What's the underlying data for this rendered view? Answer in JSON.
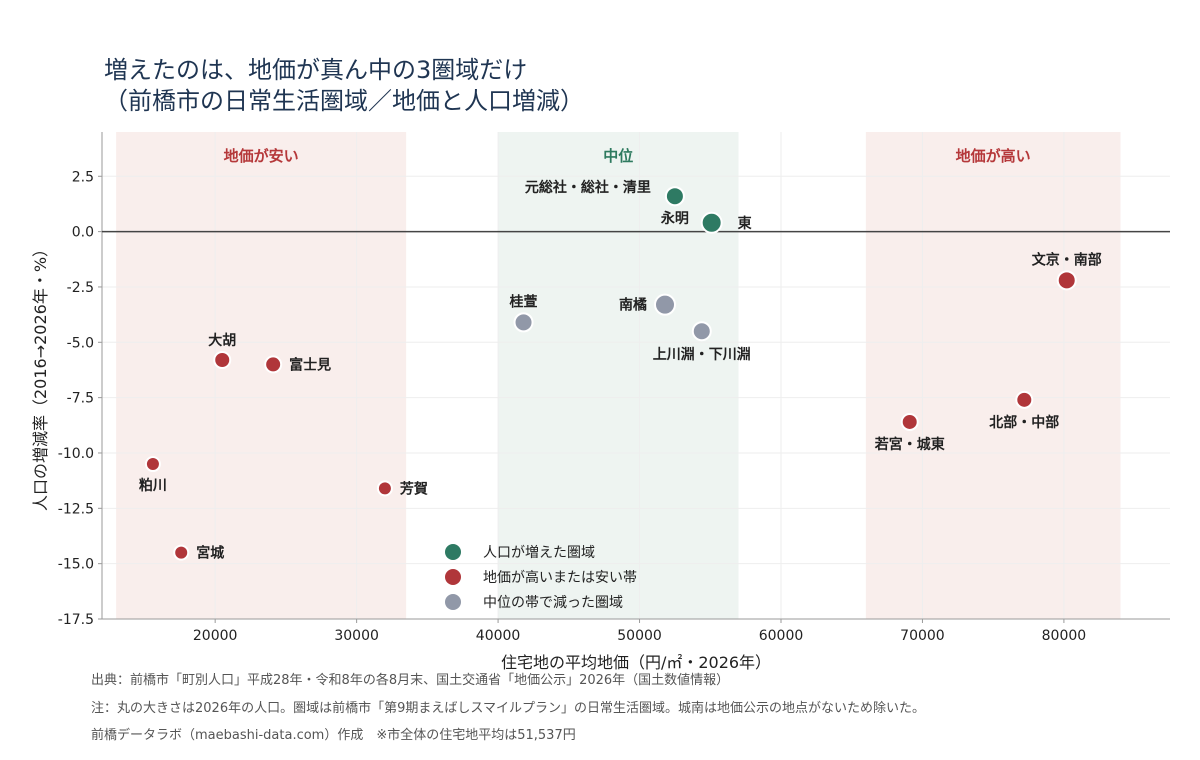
{
  "chart_data": {
    "type": "scatter",
    "title_lines": [
      "増えたのは、地価が真ん中の3圏域だけ",
      "（前橋市の日常生活圏域／地価と人口増減）"
    ],
    "xlabel": "住宅地の平均地価（円/㎡・2026年）",
    "ylabel": "人口の増減率（2016→2026年・%）",
    "xlim": [
      12000,
      87500
    ],
    "ylim": [
      -17.5,
      4.5
    ],
    "x_ticks": [
      20000,
      30000,
      40000,
      50000,
      60000,
      70000,
      80000
    ],
    "y_ticks": [
      2.5,
      0.0,
      -2.5,
      -5.0,
      -7.5,
      -10.0,
      -12.5,
      -15.0,
      -17.5
    ],
    "x_tick_labels": [
      "20000",
      "30000",
      "40000",
      "50000",
      "60000",
      "70000",
      "80000"
    ],
    "y_tick_labels": [
      "2.5",
      "0.0",
      "-2.5",
      "-5.0",
      "-7.5",
      "-10.0",
      "-12.5",
      "-15.0",
      "-17.5"
    ],
    "zero_line": 0,
    "bands": [
      {
        "label": "地価が安い",
        "x0": 13000,
        "x1": 33500,
        "fill": "#f9eeec",
        "text_color": "#b5383a"
      },
      {
        "label": "中位",
        "x0": 40000,
        "x1": 57000,
        "fill": "#eef4f1",
        "text_color": "#2e7a5f"
      },
      {
        "label": "地価が高い",
        "x0": 66000,
        "x1": 84000,
        "fill": "#f9eeec",
        "text_color": "#b5383a"
      }
    ],
    "categories": [
      {
        "key": "increase",
        "name": "人口が増えた圏域",
        "color": "#2e7a63"
      },
      {
        "key": "edge",
        "name": "地価が高いまたは安い帯",
        "color": "#b0363a"
      },
      {
        "key": "mid_decrease",
        "name": "中位の帯で減った圏域",
        "color": "#9198a8"
      }
    ],
    "points": [
      {
        "label": "元総社・総社・清里",
        "x": 52500,
        "y": 1.6,
        "category": "increase",
        "size": 9,
        "label_pos": "left"
      },
      {
        "label": "永明",
        "x": 52500,
        "y": 1.6,
        "category": "increase",
        "size": 9,
        "label_pos": "below-left"
      },
      {
        "label": "東",
        "x": 55100,
        "y": 0.4,
        "category": "increase",
        "size": 10,
        "label_pos": "right"
      },
      {
        "label": "文京・南部",
        "x": 80200,
        "y": -2.2,
        "category": "edge",
        "size": 9,
        "label_pos": "above"
      },
      {
        "label": "桂萱",
        "x": 41800,
        "y": -4.1,
        "category": "mid_decrease",
        "size": 9,
        "label_pos": "above"
      },
      {
        "label": "南橘",
        "x": 51800,
        "y": -3.3,
        "category": "mid_decrease",
        "size": 10,
        "label_pos": "left"
      },
      {
        "label": "上川淵・下川淵",
        "x": 54400,
        "y": -4.5,
        "category": "mid_decrease",
        "size": 9,
        "label_pos": "below"
      },
      {
        "label": "大胡",
        "x": 20500,
        "y": -5.8,
        "category": "edge",
        "size": 8,
        "label_pos": "above"
      },
      {
        "label": "富士見",
        "x": 24100,
        "y": -6.0,
        "category": "edge",
        "size": 8,
        "label_pos": "right"
      },
      {
        "label": "北部・中部",
        "x": 77200,
        "y": -7.6,
        "category": "edge",
        "size": 8,
        "label_pos": "below"
      },
      {
        "label": "若宮・城東",
        "x": 69100,
        "y": -8.6,
        "category": "edge",
        "size": 8,
        "label_pos": "below"
      },
      {
        "label": "粕川",
        "x": 15600,
        "y": -10.5,
        "category": "edge",
        "size": 7,
        "label_pos": "below"
      },
      {
        "label": "芳賀",
        "x": 32000,
        "y": -11.6,
        "category": "edge",
        "size": 7,
        "label_pos": "right"
      },
      {
        "label": "宮城",
        "x": 17600,
        "y": -14.5,
        "category": "edge",
        "size": 7,
        "label_pos": "right"
      }
    ],
    "notes": [
      "出典：前橋市「町別人口」平成28年・令和8年の各8月末、国土交通省「地価公示」2026年（国土数値情報）",
      "注：丸の大きさは2026年の人口。圏域は前橋市「第9期まえばしスマイルプラン」の日常生活圏域。城南は地価公示の地点がないため除いた。",
      "前橋データラボ（maebashi-data.com）作成　※市全体の住宅地平均は51,537円"
    ]
  }
}
